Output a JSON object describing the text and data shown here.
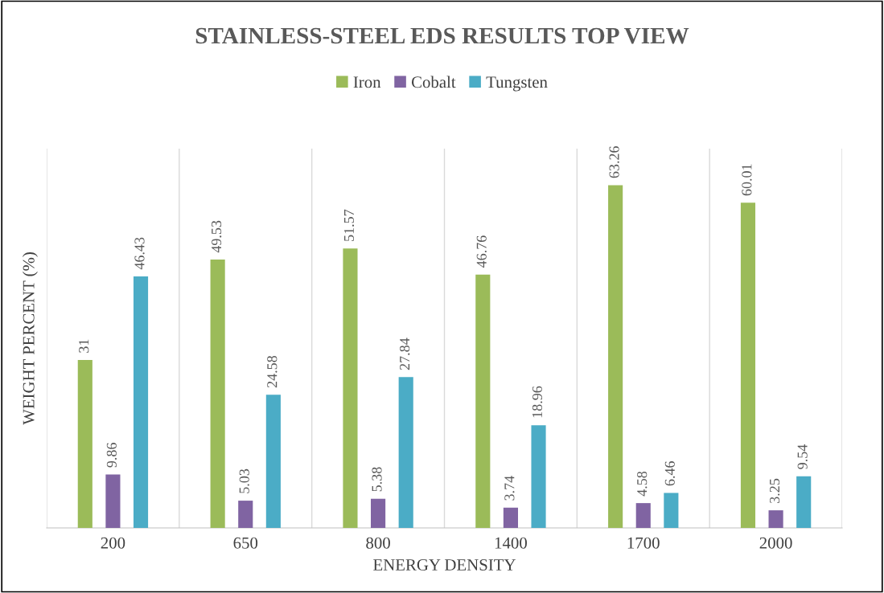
{
  "chart_data": {
    "type": "bar",
    "title": "STAINLESS-STEEL EDS RESULTS TOP VIEW",
    "xlabel": "ENERGY DENSITY",
    "ylabel": "WEIGHT PERCENT (%)",
    "categories": [
      "200",
      "650",
      "800",
      "1400",
      "1700",
      "2000"
    ],
    "series": [
      {
        "name": "Iron",
        "color": "#9bbb59",
        "values": [
          31,
          49.53,
          51.57,
          46.76,
          63.26,
          60.01
        ]
      },
      {
        "name": "Cobalt",
        "color": "#8064a2",
        "values": [
          9.86,
          5.03,
          5.38,
          3.74,
          4.58,
          3.25
        ]
      },
      {
        "name": "Tungsten",
        "color": "#4bacc6",
        "values": [
          46.43,
          24.58,
          27.84,
          18.96,
          6.46,
          9.54
        ]
      }
    ],
    "ylim": [
      0,
      70
    ],
    "tick_labels": "x",
    "data_labels": true,
    "grid": "x",
    "legend": "top"
  }
}
